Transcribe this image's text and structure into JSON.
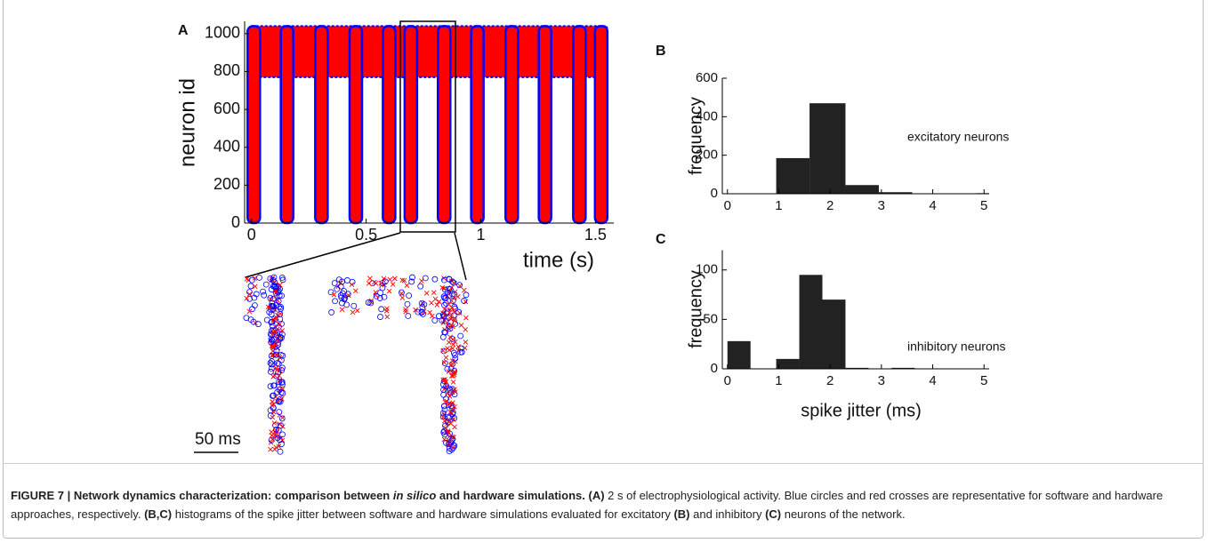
{
  "chart_data": [
    {
      "type": "raster",
      "panel_label": "A",
      "x_label": "time (s)",
      "y_label": "neuron id",
      "x": [
        0.01,
        0.155,
        0.305,
        0.455,
        0.6,
        0.695,
        0.84,
        0.985,
        1.135,
        1.28,
        1.43,
        1.525
      ],
      "values": [
        1040,
        1040,
        1040,
        1040,
        1040,
        1040,
        1040,
        1040,
        1040,
        1040,
        1040,
        1040
      ],
      "excitatory_band": {
        "x": [
          0,
          1.55
        ],
        "y": [
          770,
          1040
        ]
      },
      "xlim": [
        -0.03,
        1.58
      ],
      "ylim": [
        0,
        1065
      ],
      "xticks": [
        0,
        0.5,
        1,
        1.5
      ],
      "yticks": [
        0,
        200,
        400,
        600,
        800,
        1000
      ],
      "marker_color": "#ff0000",
      "edge_color": "#0000ff",
      "scale_bar_label": "50 ms"
    },
    {
      "type": "histogram",
      "panel_label": "B",
      "y_label": "frequency",
      "annotation": "excitatory neurons",
      "bins": [
        0.3,
        0.95,
        1.6,
        2.3,
        2.95,
        3.6,
        4.2,
        4.85,
        5.1
      ],
      "values": [
        0,
        185,
        470,
        45,
        8,
        0,
        0,
        3
      ],
      "color": "#222222",
      "xlim": [
        -0.1,
        5.1
      ],
      "ylim": [
        0,
        600
      ],
      "xticks": [
        0,
        1,
        2,
        3,
        4,
        5
      ],
      "yticks": [
        0,
        200,
        400,
        600
      ]
    },
    {
      "type": "histogram",
      "panel_label": "C",
      "y_label": "frequency",
      "x_label": "spike jitter (ms)",
      "annotation": "inhibitory neurons",
      "bins": [
        0,
        0.45,
        0.95,
        1.4,
        1.85,
        2.3,
        2.75,
        3.2,
        3.65
      ],
      "values": [
        28,
        0,
        10,
        95,
        70,
        1,
        0,
        1
      ],
      "color": "#222222",
      "xlim": [
        -0.1,
        5.1
      ],
      "ylim": [
        0,
        120
      ],
      "xticks": [
        0,
        1,
        2,
        3,
        4,
        5
      ],
      "yticks": [
        0,
        50,
        100
      ]
    }
  ],
  "caption": [
    {
      "text": "FIGURE 7 | Network dynamics characterization: comparison between ",
      "style": "bold"
    },
    {
      "text": "in silico",
      "style": "bold-italic"
    },
    {
      "text": " and hardware simulations. ",
      "style": "bold"
    },
    {
      "text": "(A)",
      "style": "bold"
    },
    {
      "text": " 2 s of electrophysiological activity. Blue circles and red crosses are representative for software and hardware approaches, respectively. ",
      "style": "normal"
    },
    {
      "text": "(B,C)",
      "style": "bold"
    },
    {
      "text": " histograms of the spike jitter between software and hardware simulations evaluated for excitatory ",
      "style": "normal"
    },
    {
      "text": "(B)",
      "style": "bold"
    },
    {
      "text": " and inhibitory ",
      "style": "normal"
    },
    {
      "text": "(C)",
      "style": "bold"
    },
    {
      "text": " neurons of the network.",
      "style": "normal"
    }
  ]
}
